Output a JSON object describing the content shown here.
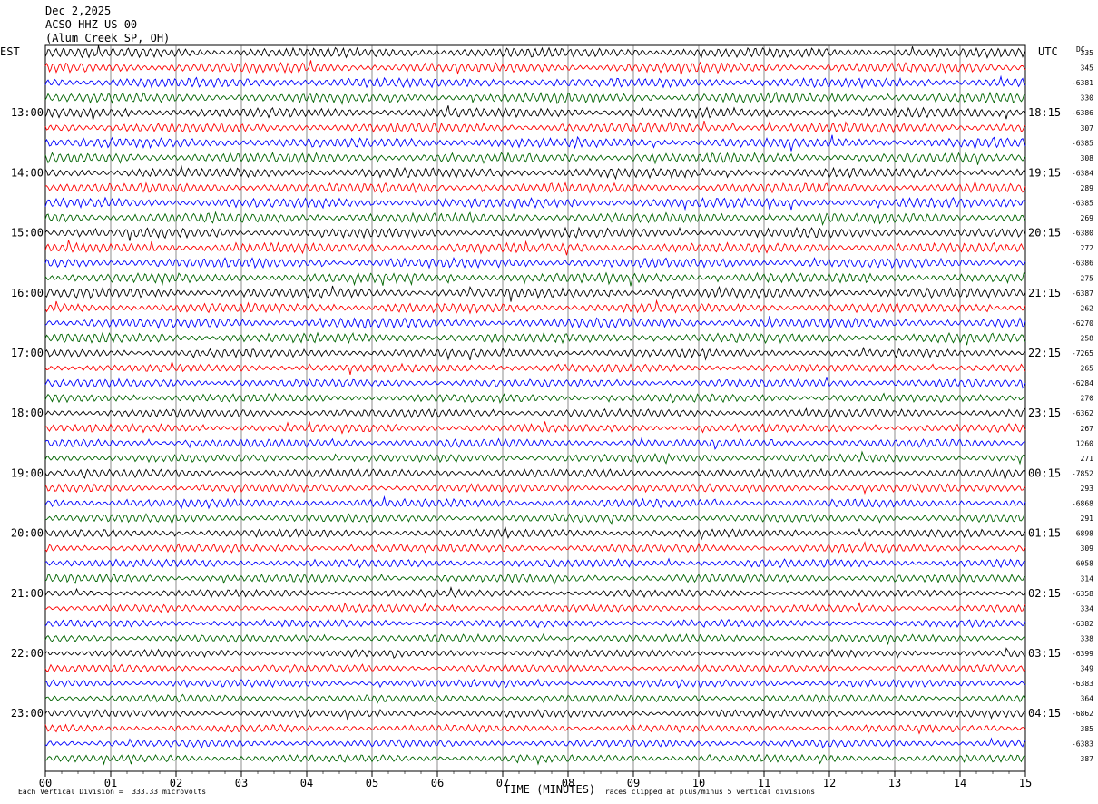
{
  "header": {
    "date": "Dec 2,2025",
    "station": "ACSO HHZ US 00",
    "location": "(Alum Creek SP, OH)"
  },
  "labels": {
    "left_zone": "EST",
    "right_zone": "UTC",
    "dc_header": "DC",
    "x_title": "TIME (MINUTES)",
    "scale_note": "Each Vertical Division =  333.33 microvolts",
    "clip_note": "Traces clipped at plus/minus 5 vertical divisions"
  },
  "chart_data": {
    "type": "line",
    "title": "",
    "xlabel": "TIME (MINUTES)",
    "xlim": [
      0,
      15
    ],
    "x_ticks": [
      "00",
      "01",
      "02",
      "03",
      "04",
      "05",
      "06",
      "07",
      "08",
      "09",
      "10",
      "11",
      "12",
      "13",
      "14",
      "15"
    ],
    "y_left_ticks": [
      "13:00",
      "14:00",
      "15:00",
      "16:00",
      "17:00",
      "18:00",
      "19:00",
      "20:00",
      "21:00",
      "22:00",
      "23:00"
    ],
    "y_right_ticks": [
      "18:15",
      "19:15",
      "20:15",
      "21:15",
      "22:15",
      "23:15",
      "00:15",
      "01:15",
      "02:15",
      "03:15",
      "04:15"
    ],
    "trace_colors": [
      "#000000",
      "#ff0000",
      "#0000ff",
      "#006400"
    ],
    "trace_count": 48,
    "traces_per_hour": 4,
    "dc_offsets": [
      "335",
      "345",
      "-6381",
      "330",
      "-6386",
      "307",
      "-6385",
      "308",
      "-6384",
      "289",
      "-6385",
      "269",
      "-6380",
      "272",
      "-6386",
      "275",
      "-6387",
      "262",
      "-6270",
      "258",
      "-7265",
      "265",
      "-6284",
      "270",
      "-6362",
      "267",
      "1260",
      "271",
      "-7852",
      "293",
      "-6868",
      "291",
      "-6898",
      "309",
      "-6058",
      "314",
      "-6358",
      "334",
      "-6382",
      "338",
      "-6399",
      "349",
      "-6383",
      "364",
      "-6862",
      "385",
      "-6383",
      "387"
    ],
    "grid": true
  }
}
